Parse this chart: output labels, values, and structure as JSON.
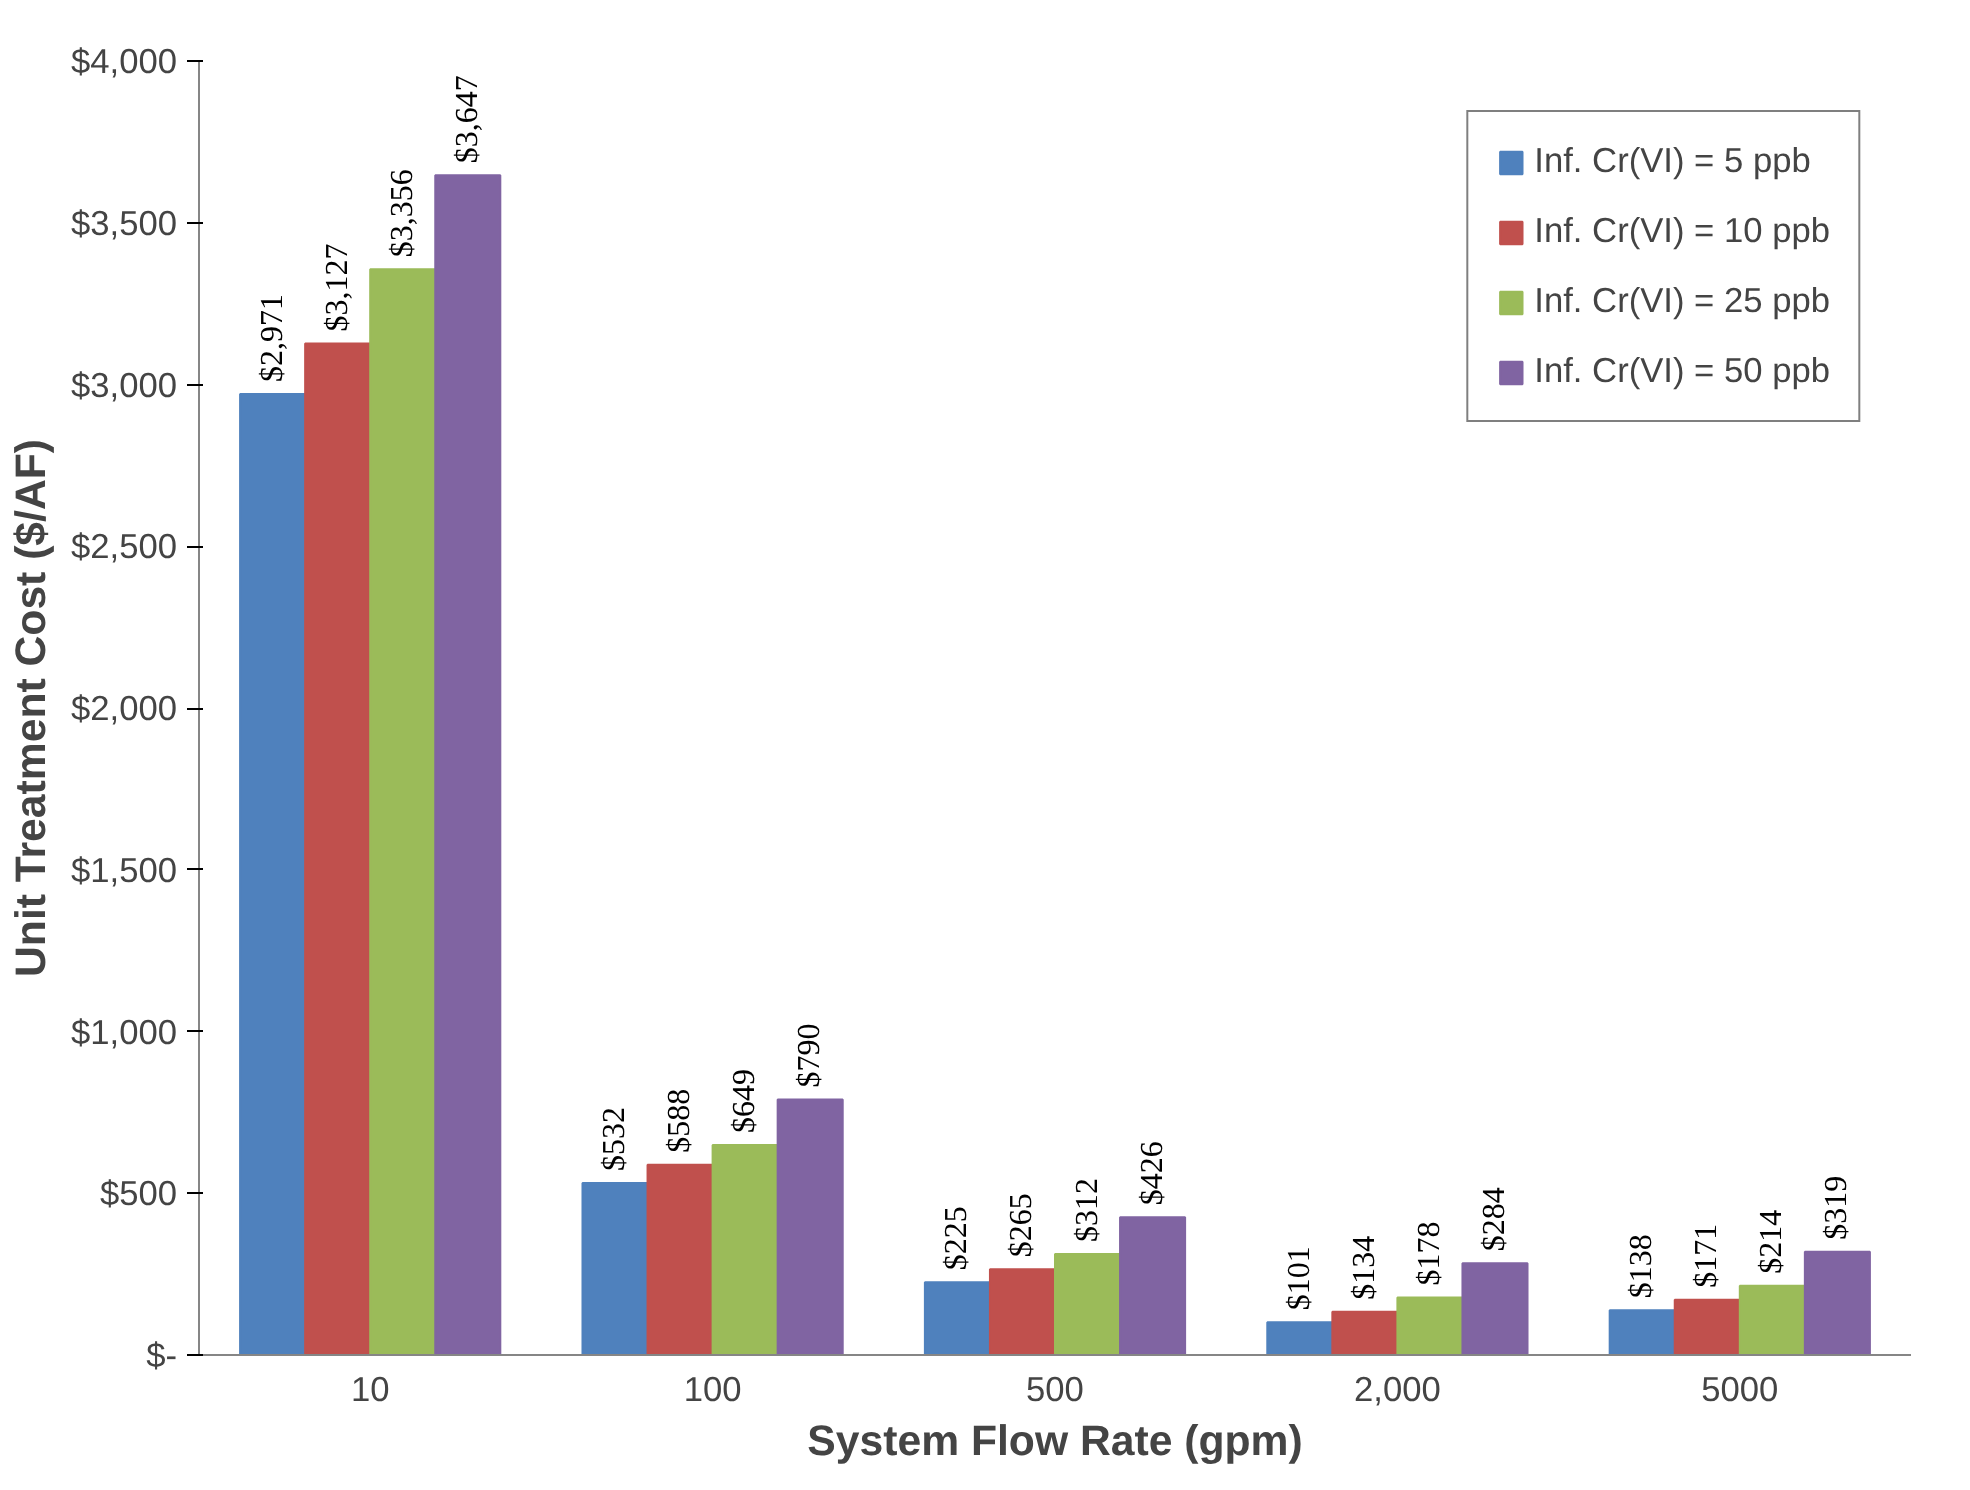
{
  "chart_data": {
    "type": "bar",
    "xlabel": "System Flow Rate (gpm)",
    "ylabel": "Unit Treatment Cost ($/AF)",
    "categories": [
      "10",
      "100",
      "500",
      "2,000",
      "5000"
    ],
    "series": [
      {
        "name": "Inf. Cr(VI) = 5 ppb",
        "color": "#4f81bd",
        "values": [
          2971,
          532,
          225,
          101,
          138
        ],
        "value_labels": [
          "$2,971",
          "$532",
          "$225",
          "$101",
          "$138"
        ]
      },
      {
        "name": "Inf. Cr(VI) = 10 ppb",
        "color": "#c0504d",
        "values": [
          3127,
          588,
          265,
          134,
          171
        ],
        "value_labels": [
          "$3,127",
          "$588",
          "$265",
          "$134",
          "$171"
        ]
      },
      {
        "name": "Inf. Cr(VI) = 25 ppb",
        "color": "#9bbb59",
        "values": [
          3356,
          649,
          312,
          178,
          214
        ],
        "value_labels": [
          "$3,356",
          "$649",
          "$312",
          "$178",
          "$214"
        ]
      },
      {
        "name": "Inf. Cr(VI) = 50 ppb",
        "color": "#8064a2",
        "values": [
          3647,
          790,
          426,
          284,
          319
        ],
        "value_labels": [
          "$3,647",
          "$790",
          "$426",
          "$284",
          "$319"
        ]
      }
    ],
    "ylim": [
      0,
      4000
    ],
    "yticks": [
      {
        "value": 0,
        "label": "$-"
      },
      {
        "value": 500,
        "label": "$500"
      },
      {
        "value": 1000,
        "label": "$1,000"
      },
      {
        "value": 1500,
        "label": "$1,500"
      },
      {
        "value": 2000,
        "label": "$2,000"
      },
      {
        "value": 2500,
        "label": "$2,500"
      },
      {
        "value": 3000,
        "label": "$3,000"
      },
      {
        "value": 3500,
        "label": "$3,500"
      },
      {
        "value": 4000,
        "label": "$4,000"
      }
    ],
    "legend": "top right",
    "grid": false
  }
}
